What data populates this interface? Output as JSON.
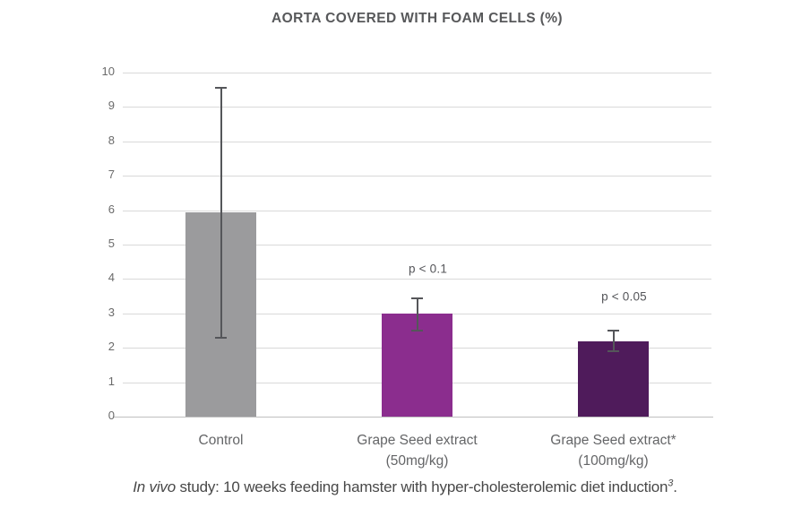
{
  "chart_data": {
    "type": "bar",
    "title": "AORTA COVERED WITH FOAM CELLS (%)",
    "categories": [
      "Control",
      "Grape Seed extract\n(50mg/kg)",
      "Grape Seed extract*\n(100mg/kg)"
    ],
    "values": [
      5.95,
      3.0,
      2.2
    ],
    "error_bars": [
      {
        "low": 2.3,
        "high": 9.55
      },
      {
        "low": 2.5,
        "high": 3.45
      },
      {
        "low": 1.9,
        "high": 2.5
      }
    ],
    "bar_colors": [
      "#9b9b9d",
      "#8b2d8e",
      "#4f1b5b"
    ],
    "annotations": [
      {
        "category_index": 1,
        "text": "p < 0.1",
        "y": 4.3
      },
      {
        "category_index": 2,
        "text": "p < 0.05",
        "y": 3.5
      }
    ],
    "ylim": [
      0,
      10
    ],
    "yticks": [
      0,
      1,
      2,
      3,
      4,
      5,
      6,
      7,
      8,
      9,
      10
    ],
    "grid": true,
    "legend": false,
    "xlabel": "",
    "ylabel": "",
    "gridline_color": "#d9d9d9",
    "baseline_color": "#bfbfbf",
    "error_bar_color": "#55565a",
    "title_color": "#57585a",
    "tick_label_color": "#6a6a6a"
  },
  "footnote": {
    "italic_lead": "In vivo",
    "body": " study: 10 weeks feeding hamster with hyper-cholesterolemic diet induction",
    "superscript": "3",
    "tail": "."
  }
}
